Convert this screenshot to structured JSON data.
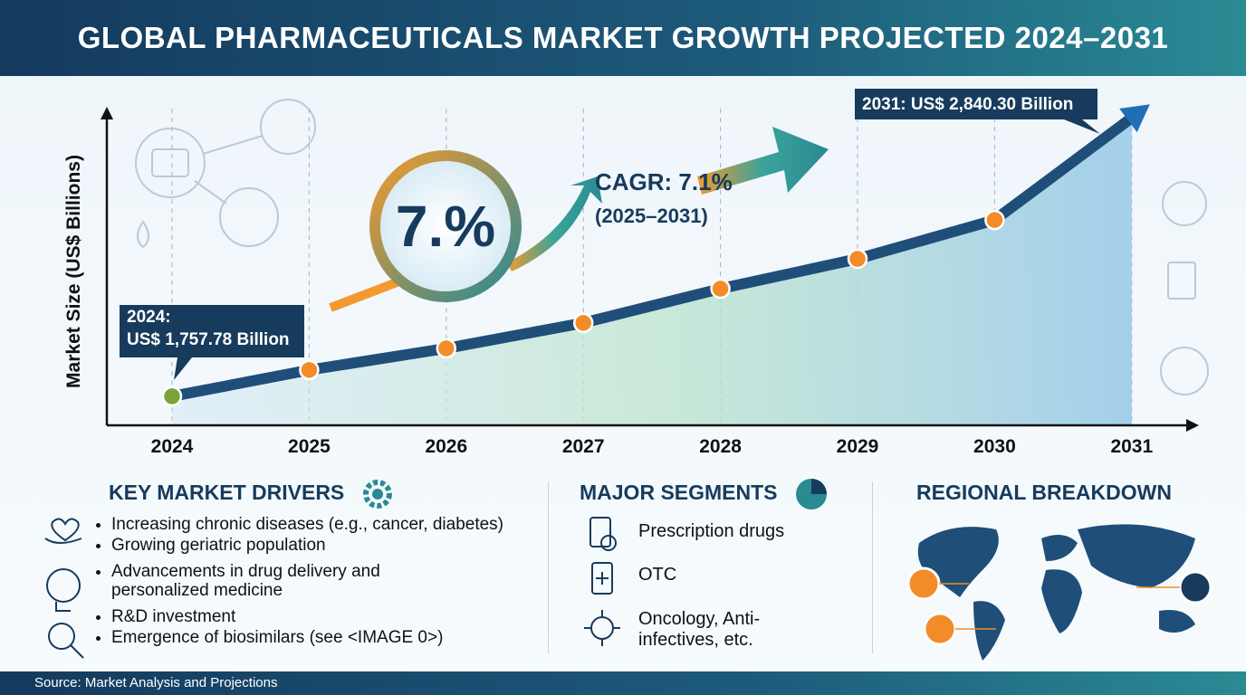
{
  "header": {
    "title": "GLOBAL PHARMACEUTICALS MARKET GROWTH PROJECTED 2024–2031"
  },
  "chart_data": {
    "type": "line",
    "y_label": "Market Size (US$ Billions)",
    "categories": [
      "2024",
      "2025",
      "2026",
      "2027",
      "2028",
      "2029",
      "2030",
      "2031"
    ],
    "values": [
      1757.78,
      1860,
      1944,
      2043,
      2176,
      2292,
      2443,
      2840.3
    ],
    "color": "#1f4e79",
    "marker_color": "#f28c28",
    "first_marker_color": "#7aa33a",
    "ylim": [
      1645,
      2876
    ],
    "annotations": [
      "2024:",
      "US$ 1,757.78 Billion",
      "2031: US$ 2,840.30 Billion",
      "7.%",
      "CAGR: 7.1%",
      "(2025–2031)"
    ]
  },
  "drivers": {
    "title": "KEY MARKET DRIVERS",
    "items": [
      "Increasing chronic diseases (e.g., cancer, diabetes)",
      "Growing geriatric population",
      "Advancements in drug delivery and personalized medicine",
      "R&D investment",
      "Emergence of biosimilars (see <IMAGE 0>)"
    ]
  },
  "segments": {
    "title": "MAJOR SEGMENTS",
    "items": [
      "Prescription drugs",
      "OTC",
      "Oncology, Anti-infectives, etc."
    ]
  },
  "regional": {
    "title": "REGIONAL BREAKDOWN"
  },
  "source": "Source: Market Analysis and Projections"
}
